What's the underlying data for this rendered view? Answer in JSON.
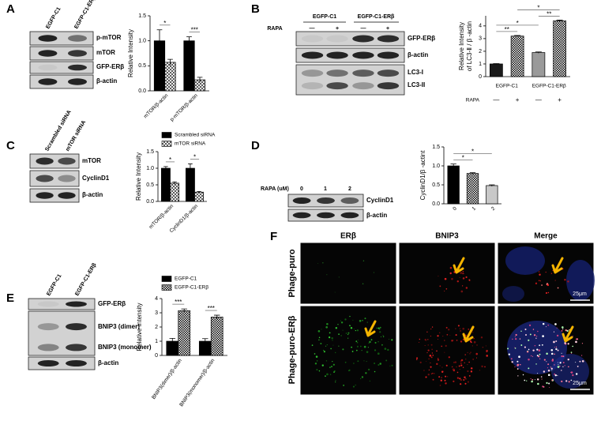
{
  "panels": [
    {
      "letter": "A",
      "blot": {
        "lanes": [
          "EGFP-C1",
          "EGFP-C1-ERβ"
        ],
        "bands": [
          "p-mTOR",
          "mTOR",
          "GFP-ERβ",
          "β-actin"
        ]
      },
      "chart": {
        "type": "bar",
        "ylabel": "Relative Intensity",
        "categories": [
          "mTOR/β-actin",
          "p-mTOR/β-actin"
        ],
        "series": [
          {
            "color": "#000000",
            "pattern": "solid",
            "values": [
              1.0,
              1.0
            ],
            "errors": [
              0.22,
              0.08
            ]
          },
          {
            "color": "#000000",
            "pattern": "hatch",
            "values": [
              0.57,
              0.22
            ],
            "errors": [
              0.06,
              0.05
            ]
          }
        ],
        "ylim": [
          0,
          1.5
        ],
        "yticks": [
          {
            "value": 0,
            "label": "0.0"
          },
          {
            "value": 0.5,
            "label": "0.5"
          },
          {
            "value": 1,
            "label": "1.0"
          },
          {
            "value": 1.5,
            "label": "1.5"
          }
        ],
        "significance": [
          "*",
          "***"
        ]
      }
    },
    {
      "letter": "B",
      "blot": {
        "treatment": "RAPA",
        "lane_groups": [
          "EGFP-C1",
          "EGFP-C1-ERβ"
        ],
        "lane_signs": [
          "—",
          "+",
          "—",
          "+"
        ],
        "bands": [
          "GFP-ERβ",
          "β-actin",
          "LC3-I",
          "LC3-II"
        ]
      },
      "chart": {
        "type": "bar",
        "ylabel": [
          "Relative Intensity",
          "of LC3-Ⅱ / β -actin"
        ],
        "xlabel": "RAPA",
        "groups": [
          "EGFP-C1",
          "EGFP-C1-ERβ"
        ],
        "categories": [
          "—",
          "+",
          "—",
          "+"
        ],
        "series": [
          {
            "colors": [
              "#1a1a1a",
              "#000000",
              "#9a9a9a",
              "#000000"
            ],
            "patterns": [
              "solid",
              "checker",
              "solid",
              "checker"
            ],
            "values": [
              1.0,
              3.2,
              1.9,
              4.4
            ],
            "errors": [
              0.03,
              0.05,
              0.05,
              0.06
            ]
          }
        ],
        "ylim": [
          0,
          4.8
        ],
        "yticks": [
          0,
          1,
          2,
          3,
          4
        ],
        "significance": [
          "**",
          "*",
          "**",
          "*"
        ]
      }
    },
    {
      "letter": "C",
      "blot": {
        "lanes": [
          "Scrambled siRNA",
          "mTOR siRNA"
        ],
        "bands": [
          "mTOR",
          "CyclinD1",
          "β-actin"
        ]
      },
      "chart": {
        "type": "bar",
        "ylabel": "Relative Intensity",
        "categories": [
          "mTOR/β-actin",
          "CyclinD1/β-actin"
        ],
        "series": [
          {
            "name": "Scrambled siRNA",
            "color": "#000000",
            "pattern": "solid",
            "values": [
              1.0,
              1.0
            ],
            "errors": [
              0.05,
              0.13
            ]
          },
          {
            "name": "mTOR siRNA",
            "color": "#000000",
            "pattern": "hatch",
            "values": [
              0.55,
              0.28
            ],
            "errors": [
              0.04,
              0.02
            ]
          }
        ],
        "ylim": [
          0,
          1.5
        ],
        "yticks": [
          {
            "value": 0,
            "label": "0.0"
          },
          {
            "value": 0.5,
            "label": "0.5"
          },
          {
            "value": 1,
            "label": "1.0"
          },
          {
            "value": 1.5,
            "label": "1.5"
          }
        ],
        "significance": [
          "*",
          "*"
        ]
      }
    },
    {
      "letter": "D",
      "blot": {
        "treatment": "RAPA (uM)",
        "lanes": [
          "0",
          "1",
          "2"
        ],
        "bands": [
          "CyclinD1",
          "β-actin"
        ]
      },
      "chart": {
        "type": "bar",
        "ylabel": "CyclinD1/β -actint",
        "categories": [
          "0",
          "1",
          "2"
        ],
        "series": [
          {
            "colors": [
              "#000000",
              "#000000",
              "#c8c8c8"
            ],
            "patterns": [
              "solid",
              "checker",
              "solid"
            ],
            "values": [
              1.0,
              0.8,
              0.48
            ],
            "errors": [
              0.05,
              0.02,
              0.02
            ]
          }
        ],
        "ylim": [
          0,
          1.5
        ],
        "yticks": [
          {
            "value": 0,
            "label": "0.0"
          },
          {
            "value": 0.5,
            "label": "0.5"
          },
          {
            "value": 1,
            "label": "1.0"
          },
          {
            "value": 1.5,
            "label": "1.5"
          }
        ],
        "significance": [
          "*",
          "*"
        ]
      }
    },
    {
      "letter": "E",
      "blot": {
        "lanes": [
          "EGFP-C1",
          "EGFP-C1-ERβ"
        ],
        "bands": [
          "GFP-ERβ",
          "BNIP3 (dimer)",
          "BNIP3 (monomer)",
          "β-actin"
        ]
      },
      "chart": {
        "type": "bar",
        "ylabel": "Relative Intensity",
        "categories": [
          "BNIP3(dimer)/β-actin",
          "BNIP3(monomer)/β-actin"
        ],
        "series": [
          {
            "name": "EGFP-C1",
            "color": "#000000",
            "pattern": "solid",
            "values": [
              1.0,
              1.0
            ],
            "errors": [
              0.2,
              0.18
            ]
          },
          {
            "name": "EGFP-C1-ERβ",
            "color": "#000000",
            "pattern": "checker",
            "values": [
              3.15,
              2.7
            ],
            "errors": [
              0.12,
              0.13
            ]
          }
        ],
        "ylim": [
          0,
          4
        ],
        "yticks": [
          0,
          1,
          2,
          3,
          4
        ],
        "significance": [
          "***",
          "***"
        ]
      }
    },
    {
      "letter": "F",
      "columns": [
        "ERβ",
        "BNIP3",
        "Merge"
      ],
      "rows": [
        "Phage-puro",
        "Phage-puro-ERβ"
      ],
      "scale_bars": [
        "25μm",
        "25μm"
      ]
    }
  ]
}
